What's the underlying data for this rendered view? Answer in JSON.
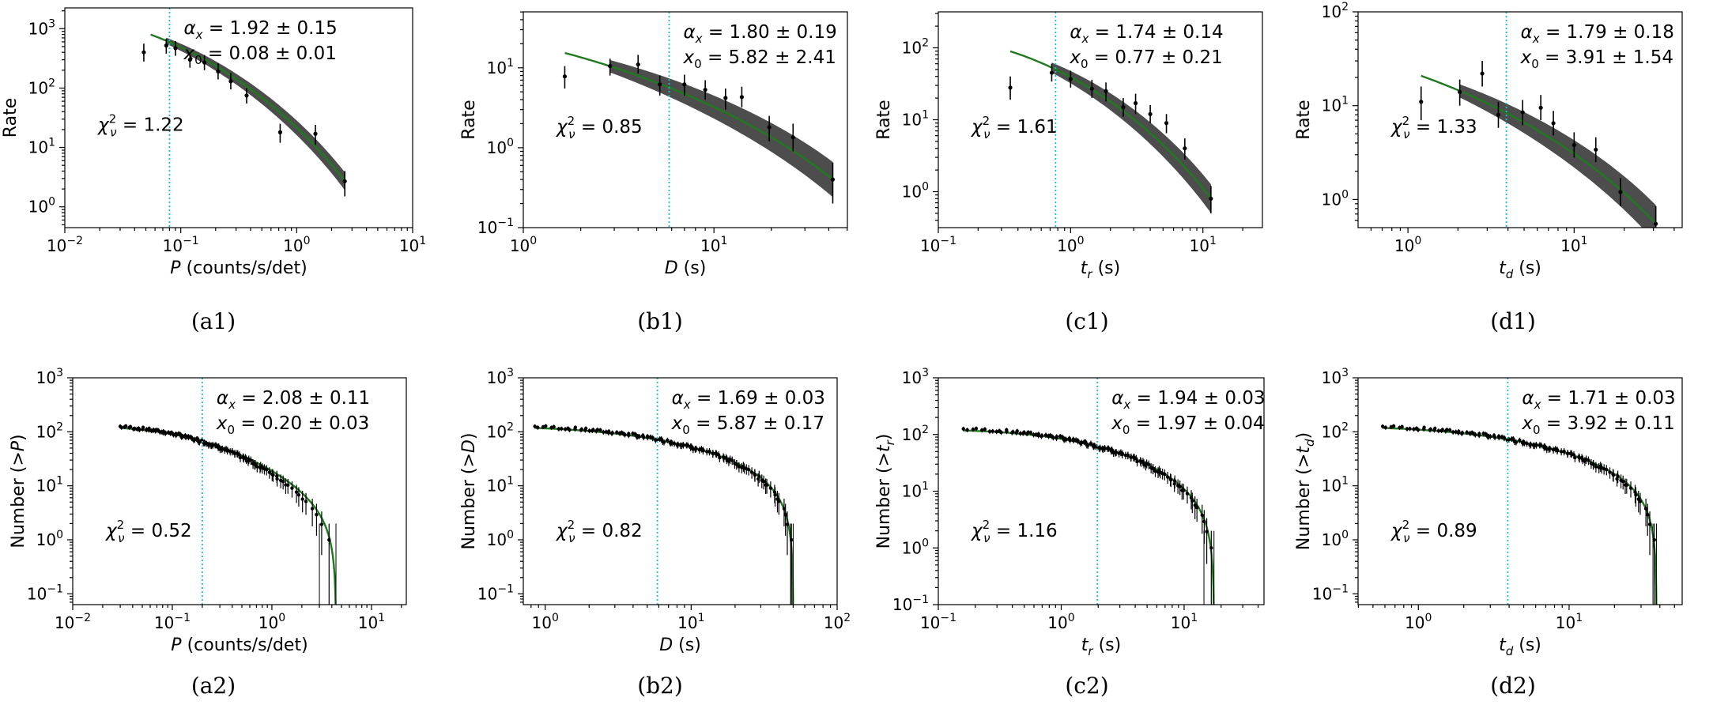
{
  "chart_data": [
    {
      "id": "a1",
      "caption": "(a1)",
      "type": "scatter",
      "xlabel_main": "P",
      "xlabel_rest": " (counts/s/det)",
      "ylabel": "Rate",
      "xlim_exp": [
        -2,
        1
      ],
      "ylim_exp": [
        -0.35,
        3.35
      ],
      "xticks_exp": [
        -2,
        -1,
        0,
        1
      ],
      "yticks_exp": [
        0,
        1,
        2,
        3
      ],
      "alpha": "1.92 ± 0.15",
      "x0_text": "0.08 ± 0.01",
      "chi2": "1.22",
      "x0": 0.08,
      "points": [
        {
          "x": 0.048,
          "y": 400,
          "lo": 280,
          "hi": 560
        },
        {
          "x": 0.075,
          "y": 520,
          "lo": 380,
          "hi": 680
        },
        {
          "x": 0.09,
          "y": 470,
          "lo": 350,
          "hi": 620
        },
        {
          "x": 0.12,
          "y": 300,
          "lo": 220,
          "hi": 400
        },
        {
          "x": 0.16,
          "y": 270,
          "lo": 200,
          "hi": 360
        },
        {
          "x": 0.21,
          "y": 190,
          "lo": 140,
          "hi": 260
        },
        {
          "x": 0.27,
          "y": 130,
          "lo": 95,
          "hi": 180
        },
        {
          "x": 0.37,
          "y": 75,
          "lo": 55,
          "hi": 100
        },
        {
          "x": 0.72,
          "y": 18,
          "lo": 12,
          "hi": 25
        },
        {
          "x": 1.45,
          "y": 17,
          "lo": 11,
          "hi": 24
        },
        {
          "x": 2.6,
          "y": 2.7,
          "lo": 1.5,
          "hi": 4
        }
      ],
      "fit": {
        "xmin": 0.048,
        "xmax": 2.6,
        "start": 0.055,
        "ymax": 800,
        "n": 1,
        "xc": 0.08
      },
      "band": {
        "xmin": 0.075,
        "xmax": 2.6,
        "width": 0.15
      }
    },
    {
      "id": "b1",
      "caption": "(b1)",
      "type": "scatter",
      "xlabel_main": "D",
      "xlabel_rest": " (s)",
      "ylabel": "Rate",
      "xlim_exp": [
        0,
        1.7
      ],
      "ylim_exp": [
        -1,
        1.7
      ],
      "xticks_exp": [
        0,
        1
      ],
      "yticks_exp": [
        -1,
        0,
        1
      ],
      "alpha": "1.80 ± 0.19",
      "x0_text": "5.82 ± 2.41",
      "chi2": "0.85",
      "x0": 5.82,
      "points": [
        {
          "x": 1.65,
          "y": 7.8,
          "lo": 5.5,
          "hi": 10.5
        },
        {
          "x": 2.85,
          "y": 10.5,
          "lo": 8,
          "hi": 13
        },
        {
          "x": 4,
          "y": 11,
          "lo": 8.5,
          "hi": 14.5
        },
        {
          "x": 5.2,
          "y": 6.2,
          "lo": 4.5,
          "hi": 8
        },
        {
          "x": 7,
          "y": 6.2,
          "lo": 4.5,
          "hi": 8.2
        },
        {
          "x": 9,
          "y": 5.3,
          "lo": 4,
          "hi": 7
        },
        {
          "x": 11.5,
          "y": 4.2,
          "lo": 3,
          "hi": 5.5
        },
        {
          "x": 14,
          "y": 4.3,
          "lo": 3.2,
          "hi": 5.8
        },
        {
          "x": 19.5,
          "y": 1.8,
          "lo": 1.2,
          "hi": 2.5
        },
        {
          "x": 26,
          "y": 1.35,
          "lo": 0.9,
          "hi": 2
        },
        {
          "x": 42,
          "y": 0.4,
          "lo": 0.2,
          "hi": 0.65
        }
      ],
      "fit": {
        "xmin": 1.65,
        "xmax": 42,
        "start": 1.65,
        "ymax": 15.5,
        "n": 1.5,
        "xc": 5.82
      },
      "band": {
        "xmin": 2.85,
        "xmax": 42,
        "width": 0.22
      }
    },
    {
      "id": "c1",
      "caption": "(c1)",
      "type": "scatter",
      "xlabel_main": "t",
      "xlabel_sub": "r",
      "xlabel_rest": " (s)",
      "ylabel": "Rate",
      "xlim_exp": [
        -1,
        1.45
      ],
      "ylim_exp": [
        -0.5,
        2.5
      ],
      "xticks_exp": [
        -1,
        0,
        1
      ],
      "yticks_exp": [
        0,
        1,
        2
      ],
      "alpha": "1.74 ± 0.14",
      "x0_text": "0.77 ± 0.21",
      "chi2": "1.61",
      "x0": 0.77,
      "points": [
        {
          "x": 0.35,
          "y": 28,
          "lo": 19,
          "hi": 40
        },
        {
          "x": 0.72,
          "y": 45,
          "lo": 34,
          "hi": 60
        },
        {
          "x": 1.0,
          "y": 37,
          "lo": 28,
          "hi": 48
        },
        {
          "x": 1.45,
          "y": 27,
          "lo": 20,
          "hi": 36
        },
        {
          "x": 1.85,
          "y": 25,
          "lo": 18,
          "hi": 33
        },
        {
          "x": 2.5,
          "y": 15,
          "lo": 11,
          "hi": 20
        },
        {
          "x": 3.1,
          "y": 17,
          "lo": 12,
          "hi": 23
        },
        {
          "x": 4,
          "y": 12,
          "lo": 9,
          "hi": 16
        },
        {
          "x": 5.3,
          "y": 9,
          "lo": 6.5,
          "hi": 12
        },
        {
          "x": 7.3,
          "y": 4,
          "lo": 2.8,
          "hi": 5.5
        },
        {
          "x": 11.5,
          "y": 0.8,
          "lo": 0.5,
          "hi": 1.2
        }
      ],
      "fit": {
        "xmin": 0.35,
        "xmax": 11.5,
        "start": 0.35,
        "ymax": 90,
        "n": 1.5,
        "xc": 0.77
      },
      "band": {
        "xmin": 0.72,
        "xmax": 11.5,
        "width": 0.2
      }
    },
    {
      "id": "d1",
      "caption": "(d1)",
      "type": "scatter",
      "xlabel_main": "t",
      "xlabel_sub": "d",
      "xlabel_rest": " (s)",
      "ylabel": "Rate",
      "xlim_exp": [
        -0.3,
        1.65
      ],
      "ylim_exp": [
        -0.3,
        2
      ],
      "xticks_exp": [
        0,
        1
      ],
      "yticks_exp": [
        0,
        1,
        2
      ],
      "alpha": "1.79 ± 0.18",
      "x0_text": "3.91 ± 1.54",
      "chi2": "1.33",
      "x0": 3.91,
      "points": [
        {
          "x": 1.2,
          "y": 11,
          "lo": 7,
          "hi": 16
        },
        {
          "x": 2.05,
          "y": 14,
          "lo": 10,
          "hi": 19
        },
        {
          "x": 2.8,
          "y": 22,
          "lo": 16,
          "hi": 30
        },
        {
          "x": 3.5,
          "y": 8,
          "lo": 5.8,
          "hi": 11
        },
        {
          "x": 4.9,
          "y": 8.5,
          "lo": 6.2,
          "hi": 11.5
        },
        {
          "x": 6.3,
          "y": 9.5,
          "lo": 7,
          "hi": 13
        },
        {
          "x": 7.5,
          "y": 6.5,
          "lo": 4.8,
          "hi": 8.8
        },
        {
          "x": 10,
          "y": 3.8,
          "lo": 2.8,
          "hi": 5.2
        },
        {
          "x": 13.5,
          "y": 3.4,
          "lo": 2.5,
          "hi": 4.6
        },
        {
          "x": 19,
          "y": 1.2,
          "lo": 0.85,
          "hi": 1.7
        },
        {
          "x": 31,
          "y": 0.55,
          "lo": 0.3,
          "hi": 0.85
        }
      ],
      "fit": {
        "xmin": 1.2,
        "xmax": 31,
        "start": 1.2,
        "ymax": 21,
        "n": 1.5,
        "xc": 3.91
      },
      "band": {
        "xmin": 2.05,
        "xmax": 31,
        "width": 0.2
      }
    },
    {
      "id": "a2",
      "caption": "(a2)",
      "type": "scatter",
      "xlabel_main": "P",
      "xlabel_rest": " (counts/s/det)",
      "ylabel_pre": "Number (>",
      "ylabel_main": "P",
      "ylabel_post": ")",
      "xlim_exp": [
        -2,
        1.35
      ],
      "ylim_exp": [
        -1.2,
        3
      ],
      "xticks_exp": [
        -2,
        -1,
        0,
        1
      ],
      "yticks_exp": [
        -1,
        0,
        1,
        2,
        3
      ],
      "alpha": "2.08 ± 0.11",
      "x0_text": "0.20 ± 0.03",
      "chi2": "0.52",
      "x0": 0.2,
      "cumulative": {
        "N": 125,
        "xmin": 0.03,
        "xmax": 4.4,
        "alpha": 2.08,
        "x0": 0.2,
        "fitN": 118,
        "fitAlpha": 1.95
      },
      "drops": [
        3.0,
        4.4
      ]
    },
    {
      "id": "b2",
      "caption": "(b2)",
      "type": "scatter",
      "xlabel_main": "D",
      "xlabel_rest": " (s)",
      "ylabel_pre": "Number (>",
      "ylabel_main": "D",
      "ylabel_post": ")",
      "xlim_exp": [
        -0.15,
        2
      ],
      "ylim_exp": [
        -1.2,
        3
      ],
      "xticks_exp": [
        0,
        1,
        2
      ],
      "yticks_exp": [
        -1,
        0,
        1,
        2,
        3
      ],
      "alpha": "1.69 ± 0.03",
      "x0_text": "5.87 ± 0.17",
      "chi2": "0.82",
      "x0": 5.87,
      "cumulative": {
        "N": 125,
        "xmin": 0.85,
        "xmax": 50,
        "alpha": 1.69,
        "x0": 5.87,
        "fitN": 118,
        "fitAlpha": 1.6
      },
      "drops": [
        48,
        50
      ]
    },
    {
      "id": "c2",
      "caption": "(c2)",
      "type": "scatter",
      "xlabel_main": "t",
      "xlabel_sub": "r",
      "xlabel_rest": " (s)",
      "ylabel_pre": "Number (>",
      "ylabel_main": "t",
      "ylabel_sub": "r",
      "ylabel_post": ")",
      "xlim_exp": [
        -1,
        1.65
      ],
      "ylim_exp": [
        -1,
        3
      ],
      "xticks_exp": [
        -1,
        0,
        1
      ],
      "yticks_exp": [
        -1,
        0,
        1,
        2,
        3
      ],
      "alpha": "1.94 ± 0.03",
      "x0_text": "1.97 ± 0.04",
      "chi2": "1.16",
      "x0": 1.97,
      "cumulative": {
        "N": 125,
        "xmin": 0.16,
        "xmax": 17.5,
        "alpha": 1.94,
        "x0": 1.97,
        "fitN": 118,
        "fitAlpha": 1.85
      },
      "drops": [
        14.5,
        17.5
      ]
    },
    {
      "id": "d2",
      "caption": "(d2)",
      "type": "scatter",
      "xlabel_main": "t",
      "xlabel_sub": "d",
      "xlabel_rest": " (s)",
      "ylabel_pre": "Number (>",
      "ylabel_main": "t",
      "ylabel_sub": "d",
      "ylabel_post": ")",
      "xlim_exp": [
        -0.4,
        1.75
      ],
      "ylim_exp": [
        -1.2,
        3
      ],
      "xticks_exp": [
        0,
        1
      ],
      "yticks_exp": [
        -1,
        0,
        1,
        2,
        3
      ],
      "alpha": "1.71 ± 0.03",
      "x0_text": "3.92 ± 0.11",
      "chi2": "0.89",
      "x0": 3.92,
      "cumulative": {
        "N": 125,
        "xmin": 0.58,
        "xmax": 38,
        "alpha": 1.71,
        "x0": 3.92,
        "fitN": 118,
        "fitAlpha": 1.62
      },
      "drops": [
        36,
        38
      ]
    }
  ],
  "colors": {
    "fit": "#1f7a1f",
    "band": "#3a3a3a",
    "threshold": "#17becf",
    "points": "#000000"
  }
}
